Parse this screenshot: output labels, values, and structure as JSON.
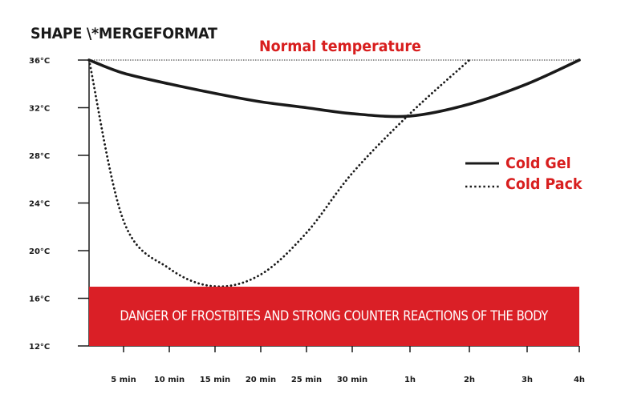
{
  "title": "SHAPE \\*MERGEFORMAT",
  "reference_label": "Normal temperature",
  "danger_zone_text": "DANGER OF FROSTBITES AND STRONG COUNTER REACTIONS OF THE BODY",
  "colors": {
    "accent": "#d81e1e",
    "danger_fill": "#da1f26",
    "line": "#1a1a1a"
  },
  "chart_data": {
    "type": "line",
    "title": "SHAPE \\*MERGEFORMAT",
    "xlabel": "",
    "ylabel": "",
    "y_ticks": [
      {
        "value": 36,
        "label": "36°C"
      },
      {
        "value": 32,
        "label": "32°C"
      },
      {
        "value": 28,
        "label": "28°C"
      },
      {
        "value": 24,
        "label": "24°C"
      },
      {
        "value": 20,
        "label": "20°C"
      },
      {
        "value": 16,
        "label": "16°C"
      },
      {
        "value": 12,
        "label": "12°C"
      }
    ],
    "ylim": [
      12,
      36
    ],
    "x_ticks": [
      "5 min",
      "10 min",
      "15 min",
      "20 min",
      "25 min",
      "30 min",
      "1h",
      "2h",
      "3h",
      "4h"
    ],
    "x_start": "0",
    "reference_line": {
      "value": 36,
      "label": "Normal temperature"
    },
    "danger_zone": {
      "ymin": 12,
      "ymax": 17,
      "label": "DANGER OF FROSTBITES AND STRONG COUNTER REACTIONS OF THE BODY"
    },
    "legend_position": "right",
    "series": [
      {
        "name": "Cold Gel",
        "style": "solid",
        "x": [
          "0",
          "5 min",
          "10 min",
          "15 min",
          "20 min",
          "25 min",
          "30 min",
          "1h",
          "2h",
          "3h",
          "4h"
        ],
        "values": [
          36,
          34.9,
          34.0,
          33.2,
          32.5,
          32.0,
          31.5,
          31.3,
          32.3,
          34.0,
          36
        ]
      },
      {
        "name": "Cold Pack",
        "style": "dotted",
        "x": [
          "0",
          "5 min",
          "10 min",
          "15 min",
          "20 min",
          "25 min",
          "30 min",
          "1h",
          "2h"
        ],
        "values": [
          36,
          22.5,
          18.5,
          17.0,
          18.0,
          21.5,
          26.5,
          31.5,
          36
        ]
      }
    ]
  }
}
